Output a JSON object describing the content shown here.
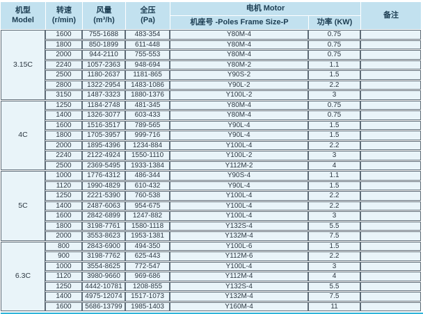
{
  "header": {
    "model": {
      "line1": "机型",
      "line2": "Model"
    },
    "speed": {
      "line1": "转速",
      "line2": "(r/min)"
    },
    "airflow": {
      "line1": "风量",
      "line2": "(m³/h)"
    },
    "pressure": {
      "line1": "全压",
      "line2": "(Pa)"
    },
    "motor": {
      "label": "电机 Motor",
      "frame_label": "机座号 -Poles Frame Size-P",
      "power_label": "功率 (KW)"
    },
    "remark": {
      "label": "备注"
    }
  },
  "groups": [
    {
      "model": "3.15C",
      "rows": [
        {
          "speed": "1600",
          "airflow": "755-1688",
          "pressure": "483-354",
          "frame": "Y80M-4",
          "power": "0.75",
          "remark": ""
        },
        {
          "speed": "1800",
          "airflow": "850-1899",
          "pressure": "611-448",
          "frame": "Y80M-4",
          "power": "0.75",
          "remark": ""
        },
        {
          "speed": "2000",
          "airflow": "944-2110",
          "pressure": "755-553",
          "frame": "Y80M-4",
          "power": "0.75",
          "remark": ""
        },
        {
          "speed": "2240",
          "airflow": "1057-2363",
          "pressure": "948-694",
          "frame": "Y80M-2",
          "power": "1.1",
          "remark": ""
        },
        {
          "speed": "2500",
          "airflow": "1180-2637",
          "pressure": "1181-865",
          "frame": "Y90S-2",
          "power": "1.5",
          "remark": ""
        },
        {
          "speed": "2800",
          "airflow": "1322-2954",
          "pressure": "1483-1086",
          "frame": "Y90L-2",
          "power": "2.2",
          "remark": ""
        },
        {
          "speed": "3150",
          "airflow": "1487-3323",
          "pressure": "1880-1376",
          "frame": "Y100L-2",
          "power": "3",
          "remark": ""
        }
      ]
    },
    {
      "model": "4C",
      "rows": [
        {
          "speed": "1250",
          "airflow": "1184-2748",
          "pressure": "481-345",
          "frame": "Y80M-4",
          "power": "0.75",
          "remark": ""
        },
        {
          "speed": "1400",
          "airflow": "1326-3077",
          "pressure": "603-433",
          "frame": "Y80M-4",
          "power": "0.75",
          "remark": ""
        },
        {
          "speed": "1600",
          "airflow": "1516-3517",
          "pressure": "789-565",
          "frame": "Y90L-4",
          "power": "1.5",
          "remark": ""
        },
        {
          "speed": "1800",
          "airflow": "1705-3957",
          "pressure": "999-716",
          "frame": "Y90L-4",
          "power": "1.5",
          "remark": ""
        },
        {
          "speed": "2000",
          "airflow": "1895-4396",
          "pressure": "1234-884",
          "frame": "Y100L-4",
          "power": "2.2",
          "remark": ""
        },
        {
          "speed": "2240",
          "airflow": "2122-4924",
          "pressure": "1550-1110",
          "frame": "Y100L-2",
          "power": "3",
          "remark": ""
        },
        {
          "speed": "2500",
          "airflow": "2369-5495",
          "pressure": "1933-1384",
          "frame": "Y112M-2",
          "power": "4",
          "remark": ""
        }
      ]
    },
    {
      "model": "5C",
      "rows": [
        {
          "speed": "1000",
          "airflow": "1776-4312",
          "pressure": "486-344",
          "frame": "Y90S-4",
          "power": "1.1",
          "remark": ""
        },
        {
          "speed": "1120",
          "airflow": "1990-4829",
          "pressure": "610-432",
          "frame": "Y90L-4",
          "power": "1.5",
          "remark": ""
        },
        {
          "speed": "1250",
          "airflow": "2221-5390",
          "pressure": "760-538",
          "frame": "Y100L-4",
          "power": "2.2",
          "remark": ""
        },
        {
          "speed": "1400",
          "airflow": "2487-6063",
          "pressure": "954-675",
          "frame": "Y100L-4",
          "power": "2.2",
          "remark": ""
        },
        {
          "speed": "1600",
          "airflow": "2842-6899",
          "pressure": "1247-882",
          "frame": "Y100L-4",
          "power": "3",
          "remark": ""
        },
        {
          "speed": "1800",
          "airflow": "3198-7761",
          "pressure": "1580-1118",
          "frame": "Y132S-4",
          "power": "5.5",
          "remark": ""
        },
        {
          "speed": "2000",
          "airflow": "3553-8623",
          "pressure": "1953-1381",
          "frame": "Y132M-4",
          "power": "7.5",
          "remark": ""
        }
      ]
    },
    {
      "model": "6.3C",
      "rows": [
        {
          "speed": "800",
          "airflow": "2843-6900",
          "pressure": "494-350",
          "frame": "Y100L-6",
          "power": "1.5",
          "remark": ""
        },
        {
          "speed": "900",
          "airflow": "3198-7762",
          "pressure": "625-443",
          "frame": "Y112M-6",
          "power": "2.2",
          "remark": ""
        },
        {
          "speed": "1000",
          "airflow": "3554-8625",
          "pressure": "772-547",
          "frame": "Y100L-4",
          "power": "3",
          "remark": ""
        },
        {
          "speed": "1120",
          "airflow": "3980-9660",
          "pressure": "969-686",
          "frame": "Y112M-4",
          "power": "4",
          "remark": ""
        },
        {
          "speed": "1250",
          "airflow": "4442-10781",
          "pressure": "1208-855",
          "frame": "Y132S-4",
          "power": "5.5",
          "remark": ""
        },
        {
          "speed": "1400",
          "airflow": "4975-12074",
          "pressure": "1517-1073",
          "frame": "Y132M-4",
          "power": "7.5",
          "remark": ""
        },
        {
          "speed": "1600",
          "airflow": "5686-13799",
          "pressure": "1985-1403",
          "frame": "Y160M-4",
          "power": "11",
          "remark": ""
        }
      ]
    }
  ],
  "colors": {
    "header_bg": "#c2e1ef",
    "row_bg": "#e9f4f9",
    "border": "#5d6a75",
    "accent_line": "#2fb4d9",
    "header_text": "#1c3d52",
    "body_text": "#2b3640"
  }
}
